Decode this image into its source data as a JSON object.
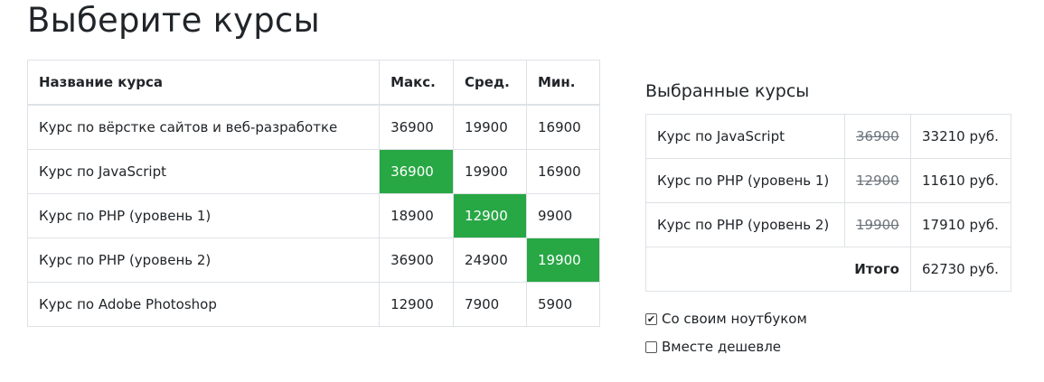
{
  "page": {
    "title": "Выберите курсы"
  },
  "courses_table": {
    "headers": [
      "Название курса",
      "Макс.",
      "Сред.",
      "Мин."
    ],
    "rows": [
      {
        "name": "Курс по вёрстке сайтов и веб-разработке",
        "max": "36900",
        "mid": "19900",
        "min": "16900",
        "selected": ""
      },
      {
        "name": "Курс по JavaScript",
        "max": "36900",
        "mid": "19900",
        "min": "16900",
        "selected": "max"
      },
      {
        "name": "Курс по PHP (уровень 1)",
        "max": "18900",
        "mid": "12900",
        "min": "9900",
        "selected": "mid"
      },
      {
        "name": "Курс по PHP (уровень 2)",
        "max": "36900",
        "mid": "24900",
        "min": "19900",
        "selected": "min"
      },
      {
        "name": "Курс по Adobe Photoshop",
        "max": "12900",
        "mid": "7900",
        "min": "5900",
        "selected": ""
      }
    ]
  },
  "selected": {
    "title": "Выбранные курсы",
    "rows": [
      {
        "name": "Курс по JavaScript",
        "old_price": "36900",
        "new_price": "33210 руб."
      },
      {
        "name": "Курс по PHP (уровень 1)",
        "old_price": "12900",
        "new_price": "11610 руб."
      },
      {
        "name": "Курс по PHP (уровень 2)",
        "old_price": "19900",
        "new_price": "17910 руб."
      }
    ],
    "total_label": "Итого",
    "total_value": "62730 руб."
  },
  "options": [
    {
      "label": "Со своим ноутбуком",
      "checked": true
    },
    {
      "label": "Вместе дешевле",
      "checked": false
    }
  ],
  "colors": {
    "selected_bg": "#28a745",
    "selected_text": "#ffffff",
    "border": "#dee2e6"
  }
}
